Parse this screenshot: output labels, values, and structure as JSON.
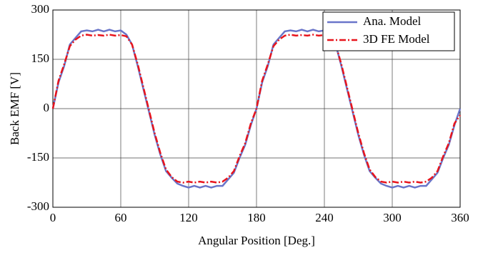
{
  "chart_data": {
    "type": "line",
    "xlabel": "Angular Position [Deg.]",
    "ylabel": "Back EMF [V]",
    "x": [
      0,
      5,
      10,
      15,
      20,
      25,
      30,
      35,
      40,
      45,
      50,
      55,
      60,
      65,
      70,
      75,
      80,
      85,
      90,
      95,
      100,
      105,
      110,
      115,
      120,
      125,
      130,
      135,
      140,
      145,
      150,
      155,
      160,
      165,
      170,
      175,
      180,
      185,
      190,
      195,
      200,
      205,
      210,
      215,
      220,
      225,
      230,
      235,
      240,
      245,
      250,
      255,
      260,
      265,
      270,
      275,
      280,
      285,
      290,
      295,
      300,
      305,
      310,
      315,
      320,
      325,
      330,
      335,
      340,
      345,
      350,
      355,
      360
    ],
    "series": [
      {
        "name": "Ana. Model",
        "color": "#6a75c9",
        "dash": "solid",
        "values": [
          0,
          80,
          130,
          195,
          215,
          235,
          238,
          235,
          240,
          235,
          240,
          235,
          238,
          225,
          195,
          130,
          60,
          -10,
          -80,
          -140,
          -190,
          -210,
          -228,
          -235,
          -240,
          -235,
          -240,
          -235,
          -240,
          -235,
          -235,
          -215,
          -195,
          -150,
          -110,
          -50,
          0,
          80,
          130,
          195,
          215,
          235,
          238,
          235,
          240,
          235,
          240,
          235,
          238,
          225,
          195,
          130,
          60,
          -10,
          -80,
          -140,
          -190,
          -210,
          -228,
          -235,
          -240,
          -235,
          -240,
          -235,
          -240,
          -235,
          -235,
          -215,
          -195,
          -150,
          -110,
          -50,
          0
        ]
      },
      {
        "name": "3D FE Model",
        "color": "#e8141c",
        "dash": "dashdot",
        "values": [
          0,
          85,
          135,
          190,
          210,
          222,
          225,
          222,
          224,
          222,
          225,
          222,
          224,
          220,
          195,
          135,
          65,
          -5,
          -75,
          -135,
          -185,
          -208,
          -222,
          -225,
          -222,
          -225,
          -222,
          -225,
          -222,
          -225,
          -222,
          -210,
          -190,
          -145,
          -105,
          -45,
          0,
          85,
          135,
          190,
          210,
          222,
          225,
          222,
          224,
          222,
          225,
          222,
          224,
          220,
          195,
          135,
          65,
          -5,
          -75,
          -135,
          -185,
          -208,
          -222,
          -225,
          -222,
          -225,
          -222,
          -225,
          -222,
          -225,
          -222,
          -210,
          -190,
          -145,
          -105,
          -45,
          -20
        ]
      }
    ],
    "xlim": [
      0,
      360
    ],
    "xticks": [
      0,
      60,
      120,
      180,
      240,
      300,
      360
    ],
    "ylim": [
      -300,
      300
    ],
    "yticks": [
      -300,
      -150,
      0,
      150,
      300
    ],
    "grid": true,
    "legend": "upper right"
  }
}
